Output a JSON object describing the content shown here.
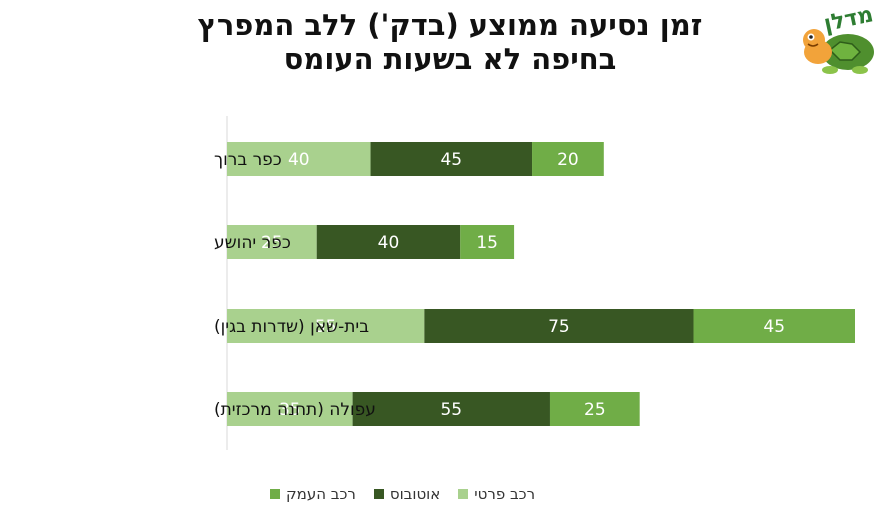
{
  "header": {
    "title_line1": "זמן נסיעה ממוצע (בדק') ללב המפרץ",
    "title_line2": "בחיפה לא בשעות העומס",
    "logo_text": "מדלן"
  },
  "colors": {
    "private": "#a9d18e",
    "bus": "#385723",
    "valley": "#70ad47"
  },
  "chart_data": {
    "type": "bar",
    "orientation": "horizontal",
    "stacked": true,
    "title": "זמן נסיעה ממוצע (בדק') ללב המפרץ בחיפה לא בשעות העומס",
    "categories": [
      "כפר ברוך",
      "כפר יהושע",
      "בית-שאן (שדרות בגין)",
      "עפולה (תחנה מרכזית)"
    ],
    "series": [
      {
        "name": "רכב פרטי",
        "color_key": "private",
        "values": [
          40,
          25,
          55,
          35
        ]
      },
      {
        "name": "אוטובוס",
        "color_key": "bus",
        "values": [
          45,
          40,
          75,
          55
        ]
      },
      {
        "name": "רכב העמק",
        "color_key": "valley",
        "values": [
          20,
          15,
          45,
          25
        ]
      }
    ],
    "xlim": [
      0,
      175
    ],
    "xlabel": "",
    "ylabel": "",
    "legend_position": "bottom",
    "grid": false
  },
  "legend": {
    "items": [
      {
        "label": "רכב פרטי",
        "color_key": "private"
      },
      {
        "label": "אוטובוס",
        "color_key": "bus"
      },
      {
        "label": "רכב העמק",
        "color_key": "valley"
      }
    ]
  }
}
